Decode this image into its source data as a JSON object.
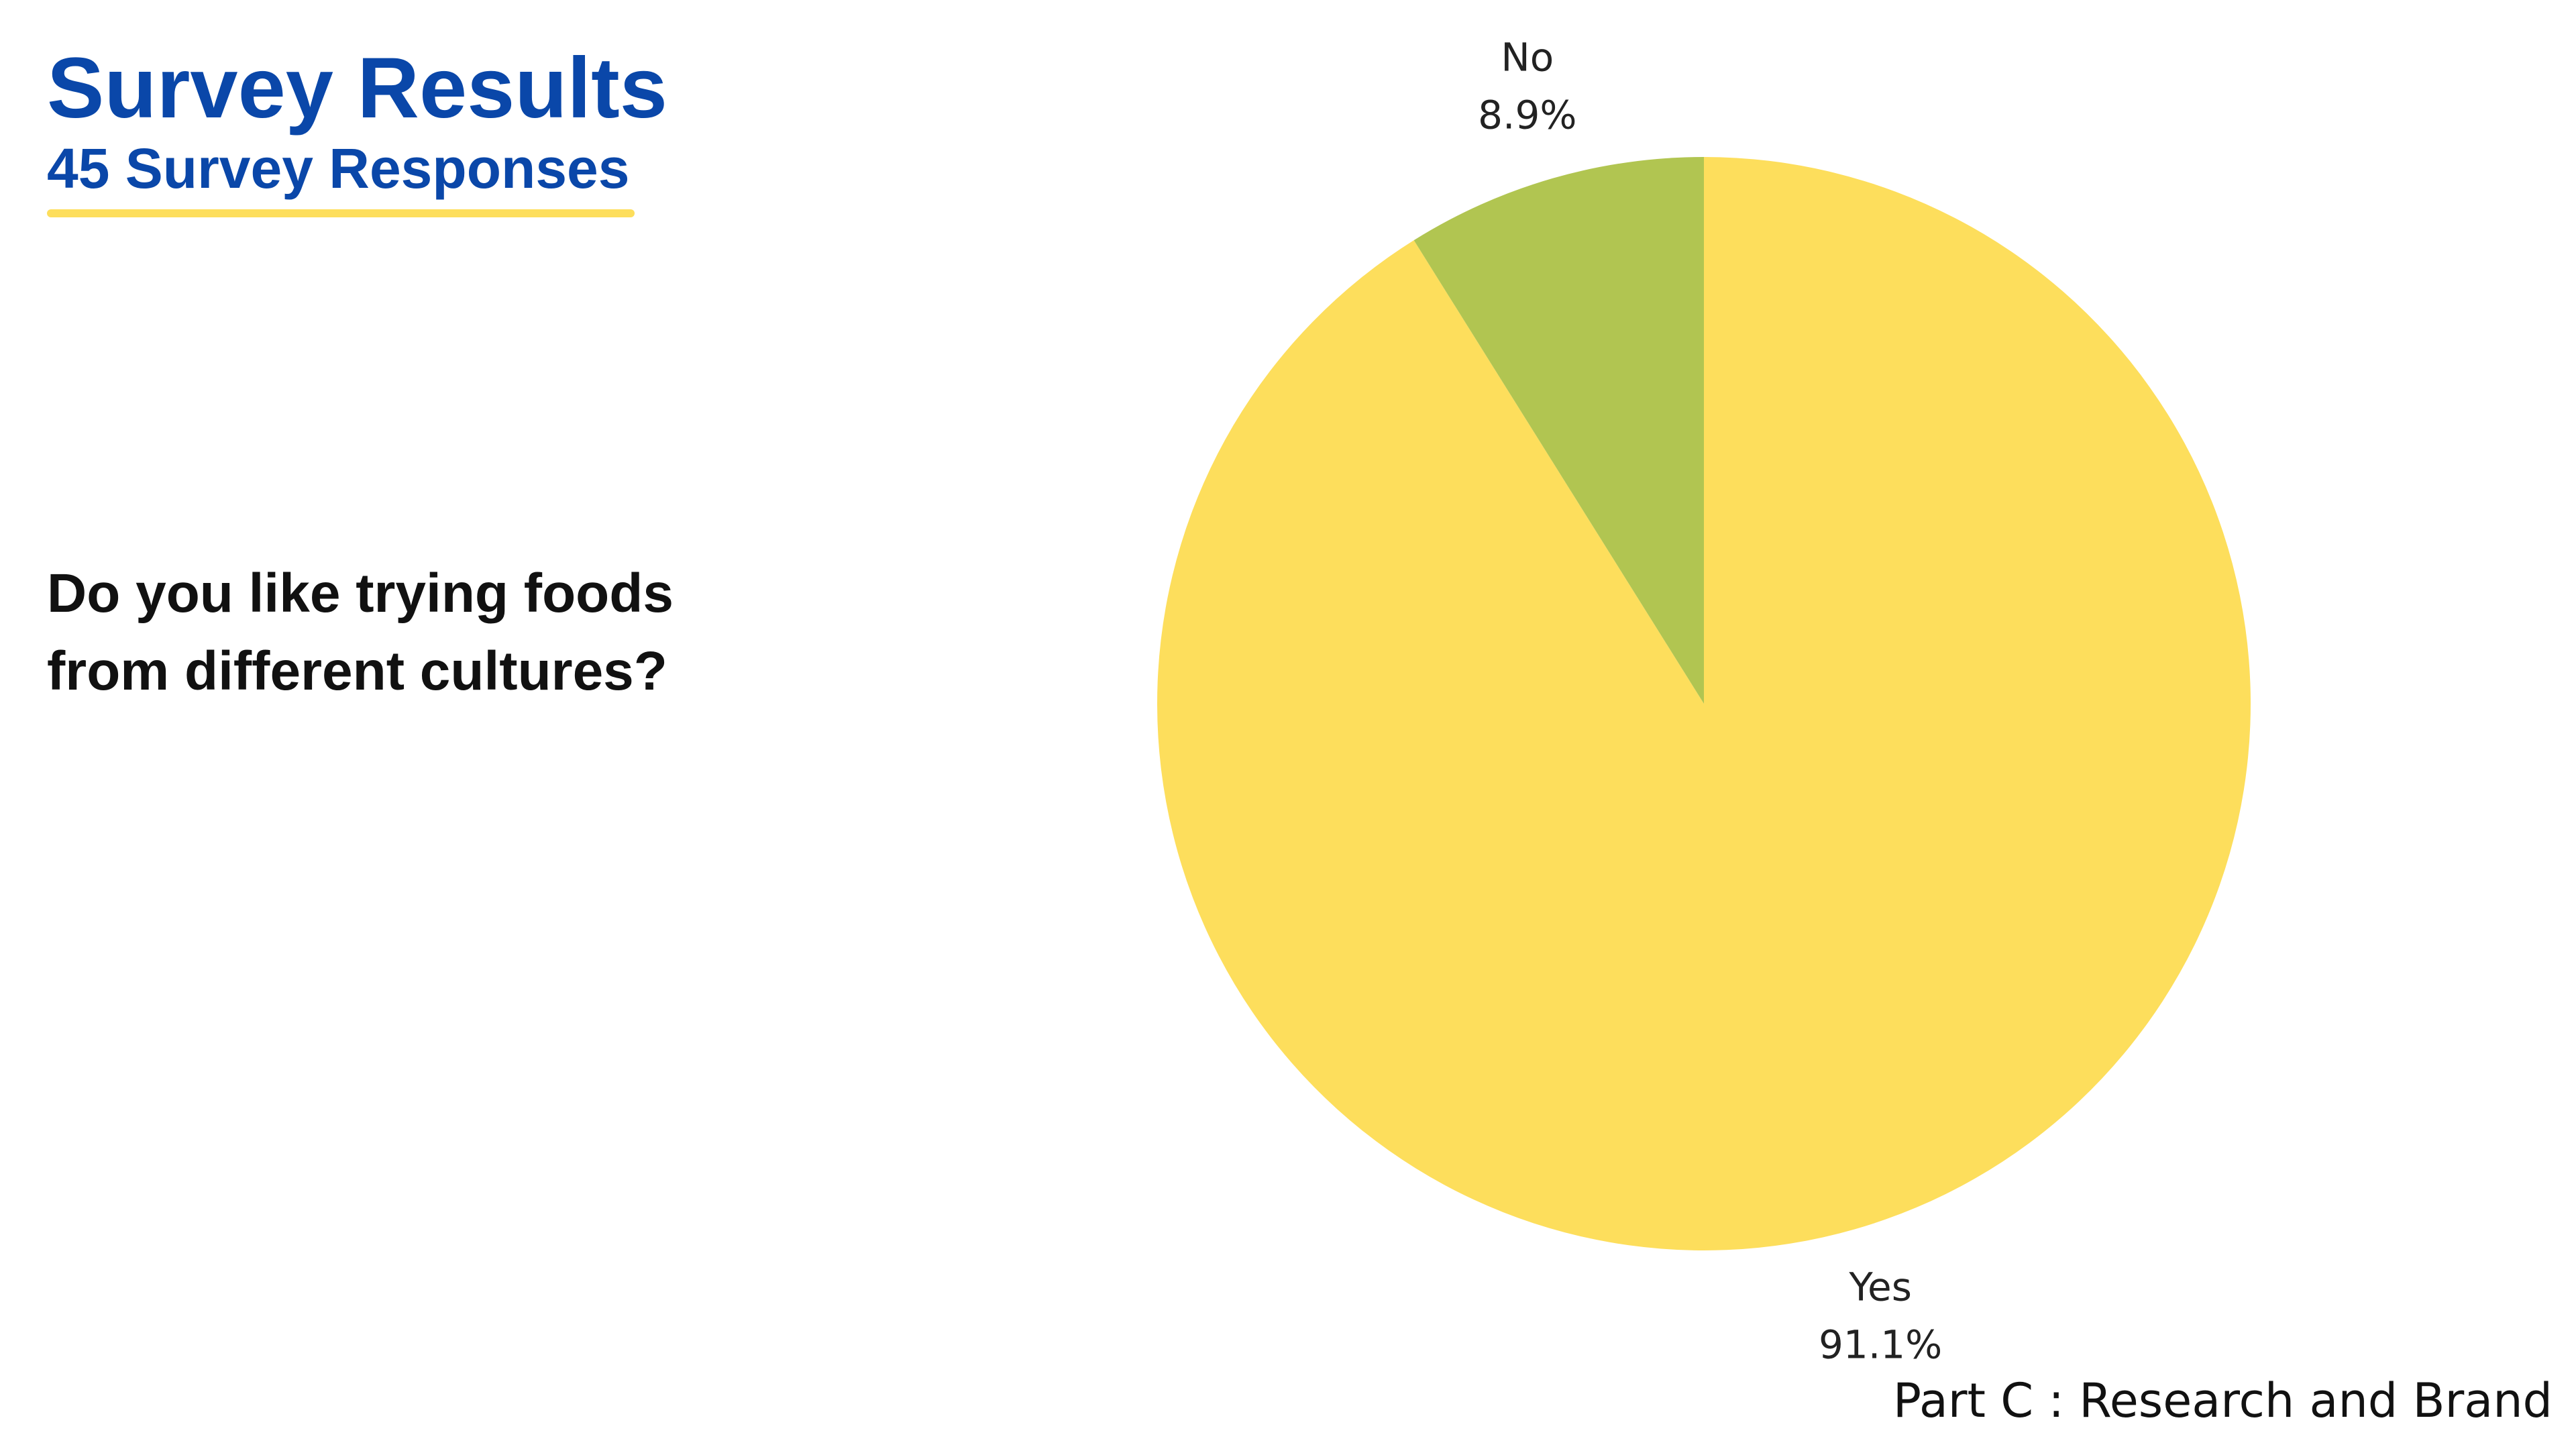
{
  "chart_data": {
    "type": "pie",
    "title": "Survey Results",
    "subtitle": "45 Survey Responses",
    "question": [
      "Do you like trying foods",
      "from different cultures?"
    ],
    "footer": "Part C : Research and Brand",
    "categories": [
      "Yes",
      "No"
    ],
    "values": [
      91.1,
      8.9
    ],
    "value_labels": [
      "91.1%",
      "8.9%"
    ],
    "colors": [
      "#fdde5c",
      "#b1c551"
    ]
  }
}
